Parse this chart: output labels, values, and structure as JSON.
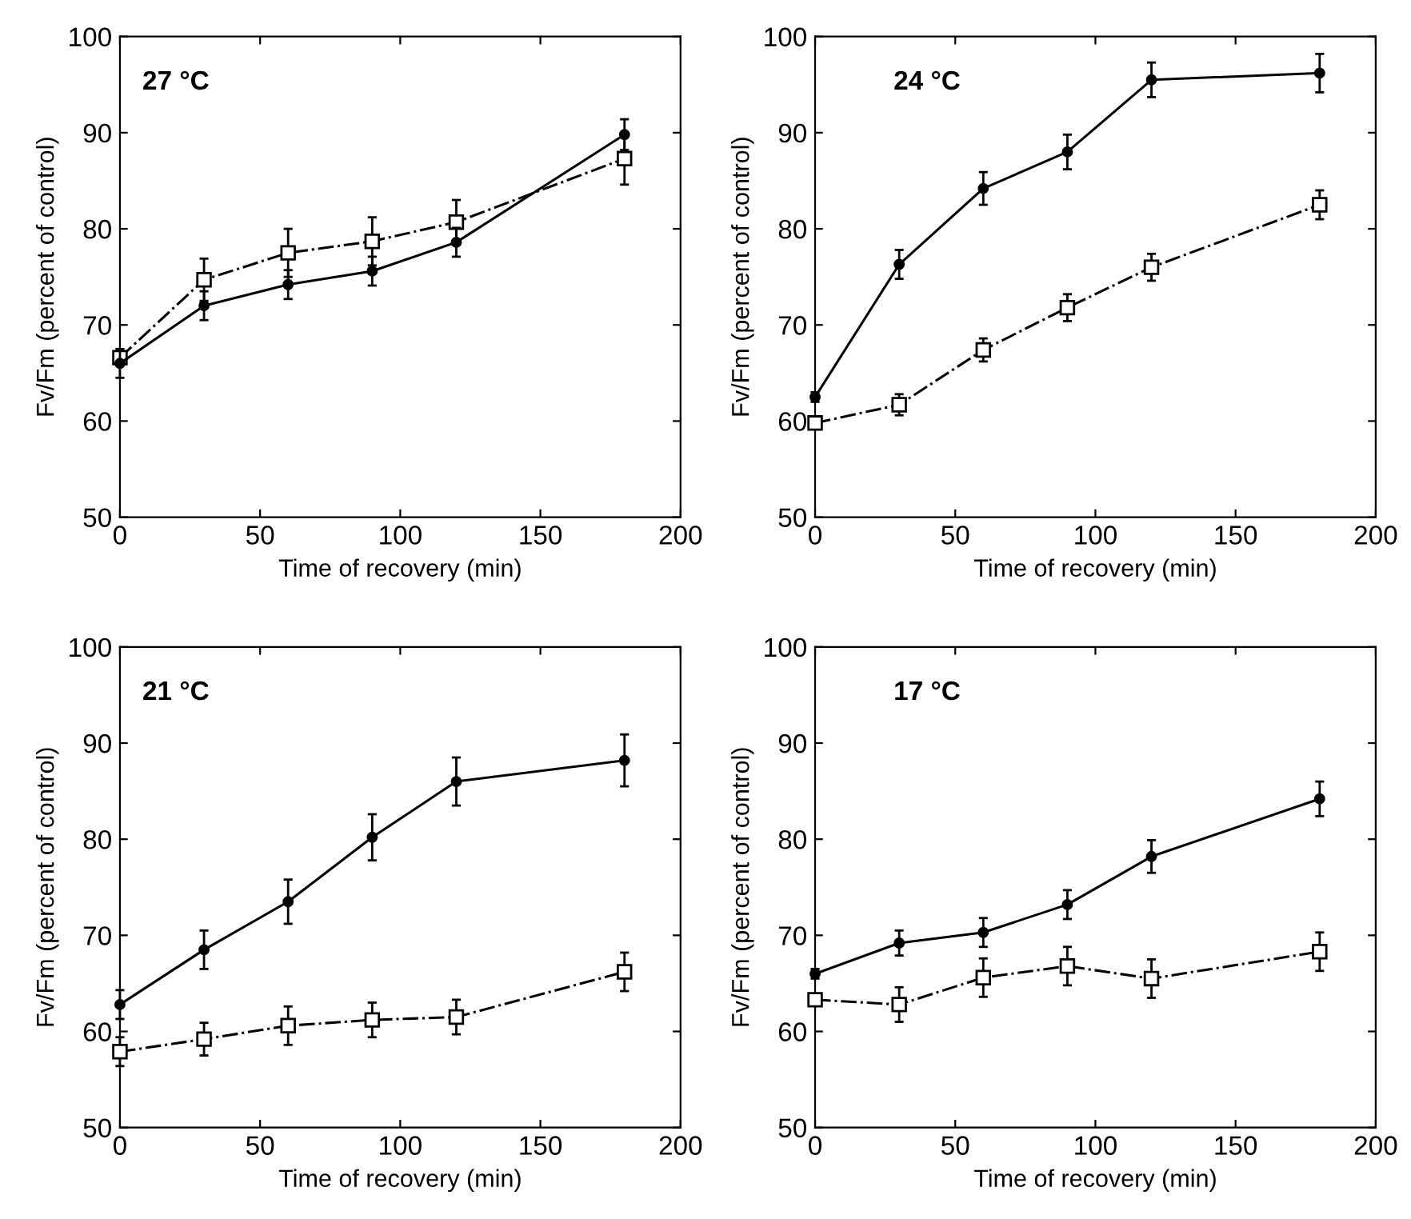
{
  "chart_data": [
    {
      "type": "line",
      "annotations": [
        "27 °C"
      ],
      "xlabel": "Time of recovery (min)",
      "ylabel": "Fv/Fm (percent of control)",
      "xlim": [
        0,
        200
      ],
      "ylim": [
        50,
        100
      ],
      "xticks": [
        0,
        50,
        100,
        150,
        200
      ],
      "yticks": [
        50,
        60,
        70,
        80,
        90,
        100
      ],
      "grid": false,
      "x": [
        0,
        30,
        60,
        90,
        120,
        180
      ],
      "series": [
        {
          "color": "#000000",
          "marker": "circle",
          "line_style": "solid",
          "values": [
            66,
            72,
            74.2,
            75.6,
            78.6,
            89.8
          ],
          "errors": [
            1.5,
            1.5,
            1.5,
            1.5,
            1.5,
            1.6
          ]
        },
        {
          "color": "#000000",
          "marker": "square",
          "line_style": "dashdot",
          "values": [
            66.6,
            74.7,
            77.5,
            78.7,
            80.7,
            87.3
          ],
          "errors": [
            0.7,
            2.2,
            2.5,
            2.5,
            2.3,
            2.7
          ]
        }
      ]
    },
    {
      "type": "line",
      "annotations": [
        "24 °C"
      ],
      "xlabel": "Time of recovery (min)",
      "ylabel": "Fv/Fm (percent of control)",
      "xlim": [
        0,
        200
      ],
      "ylim": [
        50,
        100
      ],
      "xticks": [
        0,
        50,
        100,
        150,
        200
      ],
      "yticks": [
        50,
        60,
        70,
        80,
        90,
        100
      ],
      "grid": false,
      "x": [
        0,
        30,
        60,
        90,
        120,
        180
      ],
      "series": [
        {
          "color": "#000000",
          "marker": "circle",
          "line_style": "solid",
          "values": [
            62.5,
            76.3,
            84.2,
            88,
            95.5,
            96.2
          ],
          "errors": [
            0.5,
            1.5,
            1.7,
            1.8,
            1.8,
            2
          ]
        },
        {
          "color": "#000000",
          "marker": "square",
          "line_style": "dashdot",
          "values": [
            59.8,
            61.7,
            67.4,
            71.8,
            76,
            82.5
          ],
          "errors": [
            0.5,
            1.1,
            1.2,
            1.4,
            1.4,
            1.5
          ]
        }
      ]
    },
    {
      "type": "line",
      "annotations": [
        "21 °C"
      ],
      "xlabel": "Time of recovery (min)",
      "ylabel": "Fv/Fm (percent of control)",
      "xlim": [
        0,
        200
      ],
      "ylim": [
        50,
        100
      ],
      "xticks": [
        0,
        50,
        100,
        150,
        200
      ],
      "yticks": [
        50,
        60,
        70,
        80,
        90,
        100
      ],
      "grid": false,
      "x": [
        0,
        30,
        60,
        90,
        120,
        180
      ],
      "series": [
        {
          "color": "#000000",
          "marker": "circle",
          "line_style": "solid",
          "values": [
            62.8,
            68.5,
            73.5,
            80.2,
            86,
            88.2
          ],
          "errors": [
            1.5,
            2,
            2.3,
            2.4,
            2.5,
            2.7
          ]
        },
        {
          "color": "#000000",
          "marker": "square",
          "line_style": "dashdot",
          "values": [
            57.9,
            59.2,
            60.6,
            61.2,
            61.5,
            66.2
          ],
          "errors": [
            1.5,
            1.7,
            2,
            1.8,
            1.8,
            2
          ]
        }
      ]
    },
    {
      "type": "line",
      "annotations": [
        "17 °C"
      ],
      "xlabel": "Time of recovery (min)",
      "ylabel": "Fv/Fm (percent of control)",
      "xlim": [
        0,
        200
      ],
      "ylim": [
        50,
        100
      ],
      "xticks": [
        0,
        50,
        100,
        150,
        200
      ],
      "yticks": [
        50,
        60,
        70,
        80,
        90,
        100
      ],
      "grid": false,
      "x": [
        0,
        30,
        60,
        90,
        120,
        180
      ],
      "series": [
        {
          "color": "#000000",
          "marker": "circle",
          "line_style": "solid",
          "values": [
            66,
            69.2,
            70.3,
            73.2,
            78.2,
            84.2
          ],
          "errors": [
            0.5,
            1.3,
            1.5,
            1.5,
            1.7,
            1.8
          ]
        },
        {
          "color": "#000000",
          "marker": "square",
          "line_style": "dashdot",
          "values": [
            63.3,
            62.8,
            65.6,
            66.8,
            65.5,
            68.3
          ],
          "errors": [
            0.5,
            1.8,
            2,
            2,
            2,
            2
          ]
        }
      ]
    }
  ]
}
